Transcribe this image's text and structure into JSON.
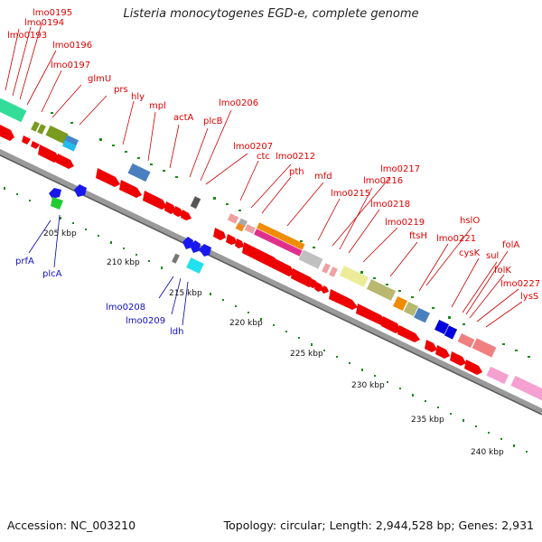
{
  "title": "Listeria monocytogenes EGD-e, complete genome",
  "footer": {
    "accession": "Accession: NC_003210",
    "summary": "Topology: circular; Length: 2,944,528 bp; Genes: 2,931"
  },
  "kbp_labels": [
    "205 kbp",
    "210 kbp",
    "215 kbp",
    "220 kbp",
    "225 kbp",
    "230 kbp",
    "235 kbp",
    "240 kbp"
  ],
  "upper_gene_labels": [
    "lmo0195",
    "lmo0194",
    "lmo0193",
    "lmo0196",
    "lmo0197",
    "glmU",
    "prs",
    "hly",
    "mpl",
    "actA",
    "plcB",
    "lmo0206",
    "lmo0207",
    "ctc",
    "lmo0212",
    "pth",
    "mfd",
    "lmo0217",
    "lmo0216",
    "lmo0215",
    "lmo0218",
    "lmo0219",
    "hslO",
    "ftsH",
    "lmo0221",
    "cysK",
    "folA",
    "sul",
    "folK",
    "lmo0227",
    "lysS"
  ],
  "lower_gene_labels": [
    "prfA",
    "plcA",
    "lmo0208",
    "lmo0209",
    "ldh"
  ],
  "colors": {
    "forward_arrow": "#ee0000",
    "reverse_arrow": "#1a1aff",
    "upper_label": "#cc0000",
    "lower_label": "#0000aa",
    "backbone": "#8a8a8a",
    "tick": "#1a7a1a"
  }
}
